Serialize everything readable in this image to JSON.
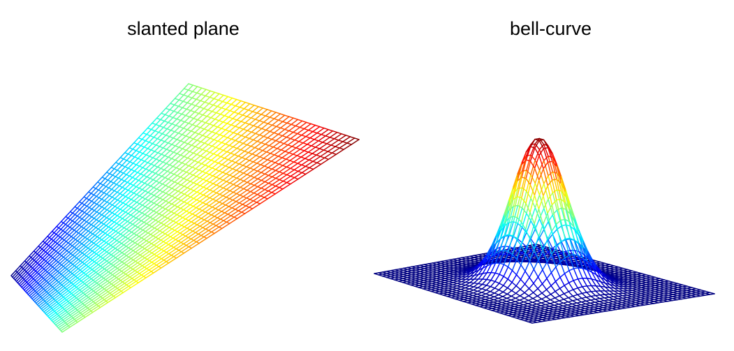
{
  "chart_data": [
    {
      "type": "surface-wireframe",
      "title": "slanted plane",
      "function": "z = x + y",
      "x_range": [
        -1,
        1
      ],
      "y_range": [
        -1,
        1
      ],
      "grid": [
        40,
        40
      ],
      "colormap": "jet",
      "axes_visible": false
    },
    {
      "type": "surface-wireframe",
      "title": "bell-curve",
      "function": "z = exp(-(x^2 + y^2))",
      "x_range": [
        -3,
        3
      ],
      "y_range": [
        -3,
        3
      ],
      "grid": [
        40,
        40
      ],
      "colormap": "jet",
      "axes_visible": false
    }
  ]
}
